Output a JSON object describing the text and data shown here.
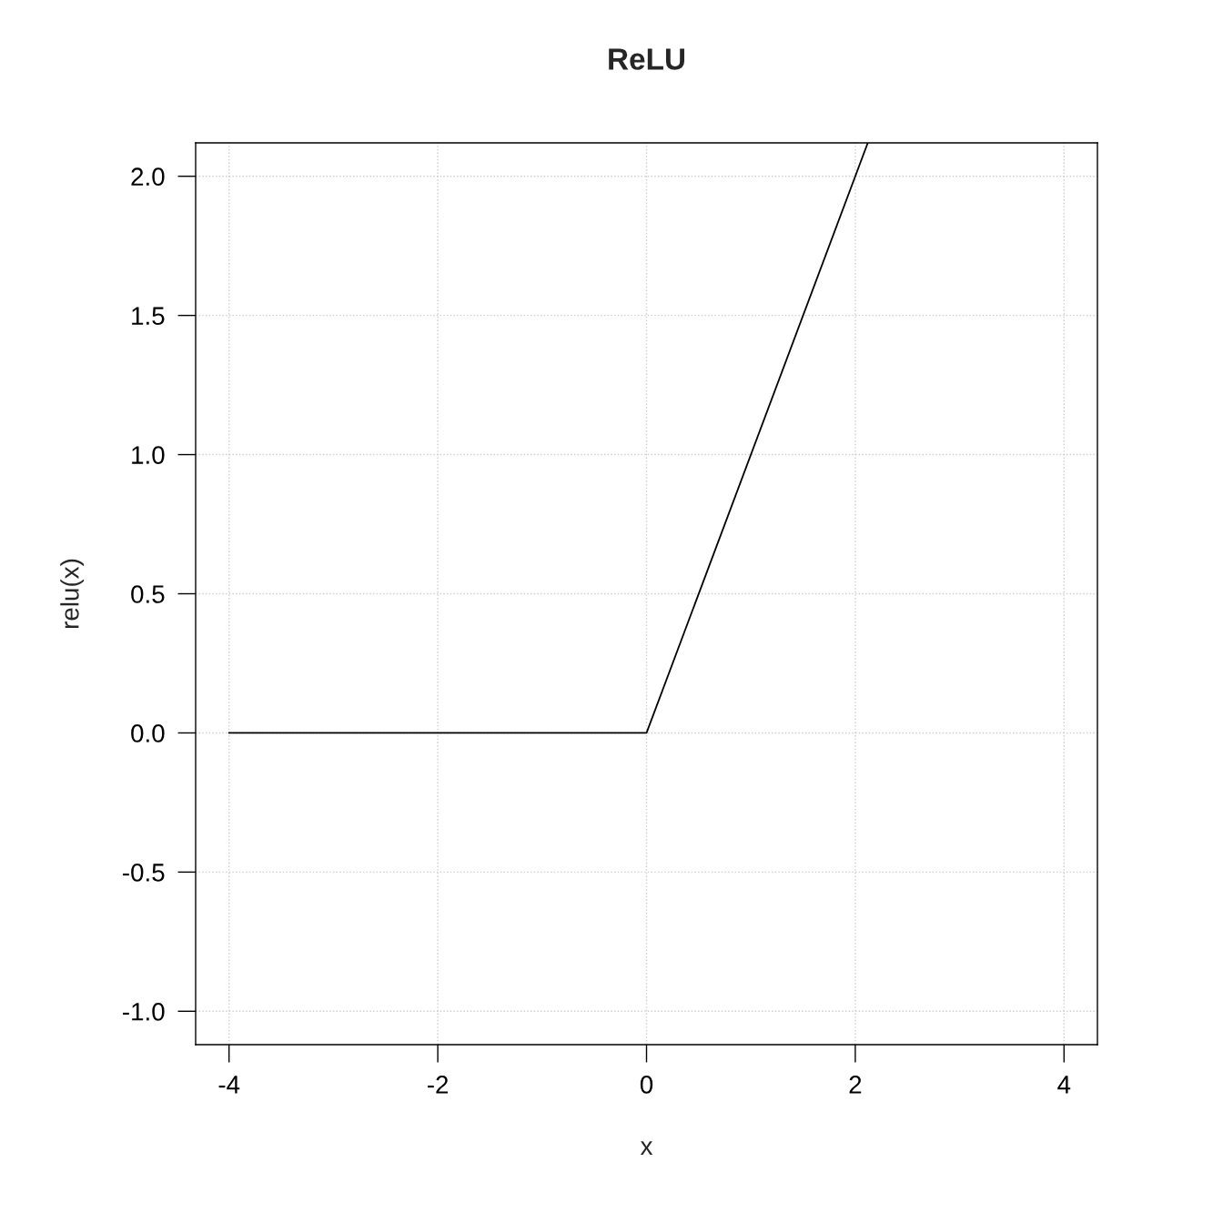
{
  "chart_data": {
    "type": "line",
    "title": "ReLU",
    "xlabel": "x",
    "ylabel": "relu(x)",
    "x": [
      -4,
      0,
      2.12
    ],
    "series": [
      {
        "color": "#000000",
        "values": [
          0,
          0,
          2.12
        ]
      }
    ],
    "xlim": [
      -4.32,
      4.32
    ],
    "ylim": [
      -1.12,
      2.12
    ],
    "xticks": [
      -4,
      -2,
      0,
      2,
      4
    ],
    "yticks": [
      {
        "value": -1,
        "label": "-1.0"
      },
      {
        "value": -0.5,
        "label": "-0.5"
      },
      {
        "value": 0,
        "label": "0.0"
      },
      {
        "value": 0.5,
        "label": "0.5"
      },
      {
        "value": 1,
        "label": "1.0"
      },
      {
        "value": 1.5,
        "label": "1.5"
      },
      {
        "value": 2,
        "label": "2.0"
      }
    ],
    "grid": true,
    "line_style": "solid",
    "marker": "none"
  }
}
